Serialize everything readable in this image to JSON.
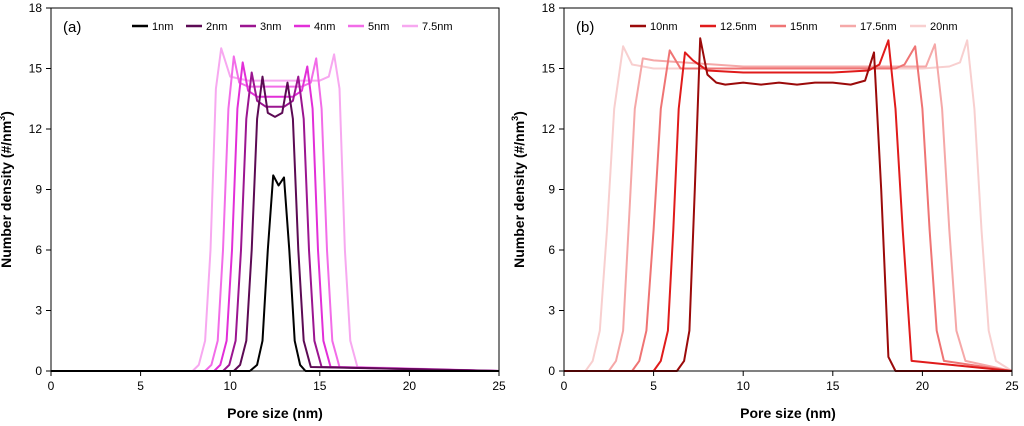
{
  "chart_data": [
    {
      "type": "line",
      "panel_label": "(a)",
      "xlabel": "Pore size (nm)",
      "ylabel_main": "Number density (#/nm",
      "ylabel_sup": "3",
      "ylabel_end": ")",
      "xlim": [
        0,
        25
      ],
      "ylim": [
        0,
        18
      ],
      "xticks": [
        0,
        5,
        10,
        15,
        20,
        25
      ],
      "yticks": [
        0,
        3,
        6,
        9,
        12,
        15,
        18
      ],
      "legend_position": "top",
      "series": [
        {
          "name": "7.5nm",
          "color": "#f7a8f0",
          "x": [
            0,
            7.9,
            8.25,
            8.6,
            8.9,
            9.2,
            9.5,
            10,
            11,
            12,
            13,
            14,
            15,
            15.5,
            15.8,
            16.1,
            16.4,
            16.7,
            17.1,
            25
          ],
          "y": [
            0,
            0,
            0.3,
            1.5,
            6,
            14,
            16,
            14.6,
            14.4,
            14.4,
            14.4,
            14.4,
            14.4,
            14.6,
            15.7,
            14,
            6,
            1.5,
            0.2,
            0
          ]
        },
        {
          "name": "5nm",
          "color": "#f26ce8",
          "x": [
            0,
            8.6,
            8.95,
            9.3,
            9.6,
            9.9,
            10.2,
            10.5,
            11,
            12,
            13,
            14,
            14.5,
            14.8,
            15.1,
            15.4,
            15.7,
            16.1,
            25
          ],
          "y": [
            0,
            0,
            0.3,
            1.5,
            6,
            13,
            15.6,
            14.3,
            14.1,
            14.1,
            14.1,
            14.1,
            14.3,
            15.5,
            13,
            6,
            1.5,
            0.2,
            0
          ]
        },
        {
          "name": "4nm",
          "color": "#e22fd8",
          "x": [
            0,
            9.1,
            9.45,
            9.8,
            10.1,
            10.4,
            10.7,
            11,
            11.5,
            12.5,
            13.5,
            14,
            14.3,
            14.6,
            14.9,
            15.2,
            15.6,
            25
          ],
          "y": [
            0,
            0,
            0.3,
            1.5,
            6,
            13,
            15.3,
            13.9,
            13.6,
            13.6,
            13.6,
            13.9,
            15.1,
            13,
            6,
            1.5,
            0.2,
            0
          ]
        },
        {
          "name": "3nm",
          "color": "#9b1590",
          "x": [
            0,
            9.6,
            9.95,
            10.3,
            10.6,
            10.9,
            11.2,
            11.5,
            12,
            12.5,
            13,
            13.5,
            13.8,
            14.1,
            14.4,
            14.7,
            15.1,
            25
          ],
          "y": [
            0,
            0,
            0.3,
            1.5,
            6,
            12.5,
            14.8,
            13.4,
            13.1,
            13.1,
            13.1,
            13.4,
            14.6,
            12.5,
            6,
            1.5,
            0.2,
            0
          ]
        },
        {
          "name": "2nm",
          "color": "#5c0a54",
          "x": [
            0,
            10.2,
            10.55,
            10.9,
            11.2,
            11.5,
            11.8,
            12.1,
            12.5,
            12.9,
            13.2,
            13.5,
            13.8,
            14.1,
            14.5,
            25
          ],
          "y": [
            0,
            0,
            0.3,
            1.5,
            6,
            12.5,
            14.6,
            12.8,
            12.6,
            12.8,
            14.3,
            12.5,
            6,
            1.5,
            0.2,
            0
          ]
        },
        {
          "name": "1nm",
          "color": "#000000",
          "x": [
            0,
            11.1,
            11.5,
            11.8,
            12.1,
            12.4,
            12.7,
            13,
            13.3,
            13.6,
            13.9,
            14.2,
            25
          ],
          "y": [
            0,
            0,
            0.3,
            1.5,
            6,
            9.7,
            9.2,
            9.6,
            6,
            1.5,
            0.3,
            0,
            0
          ]
        }
      ],
      "legend_order": [
        "1nm",
        "2nm",
        "3nm",
        "4nm",
        "5nm",
        "7.5nm"
      ]
    },
    {
      "type": "line",
      "panel_label": "(b)",
      "xlabel": "Pore size (nm)",
      "ylabel_main": "Number density (#/nm",
      "ylabel_sup": "3",
      "ylabel_end": ")",
      "xlim": [
        0,
        25
      ],
      "ylim": [
        0,
        18
      ],
      "xticks": [
        0,
        5,
        10,
        15,
        20,
        25
      ],
      "yticks": [
        0,
        3,
        6,
        9,
        12,
        15,
        18
      ],
      "legend_position": "top",
      "series": [
        {
          "name": "20nm",
          "color": "#f8cfcf",
          "x": [
            0,
            1.2,
            1.6,
            2,
            2.4,
            2.8,
            3.3,
            3.8,
            5,
            10,
            15,
            20,
            21.5,
            22.1,
            22.5,
            22.9,
            23.3,
            23.7,
            24.1,
            25
          ],
          "y": [
            0,
            0,
            0.5,
            2,
            7,
            13,
            16.1,
            15.2,
            15,
            15,
            15,
            15,
            15.1,
            15.3,
            16.4,
            13,
            7,
            2,
            0.5,
            0
          ]
        },
        {
          "name": "17.5nm",
          "color": "#f5a8a8",
          "x": [
            0,
            2.5,
            2.9,
            3.3,
            3.6,
            3.95,
            4.4,
            5,
            10,
            15,
            19,
            20.2,
            20.7,
            21.1,
            21.5,
            21.9,
            22.4,
            25
          ],
          "y": [
            0,
            0,
            0.5,
            2,
            7,
            13,
            15.5,
            15.4,
            15.1,
            15.1,
            15.1,
            15.1,
            16.2,
            13,
            7,
            2,
            0.5,
            0
          ]
        },
        {
          "name": "15nm",
          "color": "#ef7474",
          "x": [
            0,
            3.8,
            4.2,
            4.6,
            5,
            5.4,
            5.9,
            6.5,
            10,
            15,
            18.5,
            19,
            19.6,
            20,
            20.4,
            20.8,
            21.2,
            25
          ],
          "y": [
            0,
            0,
            0.5,
            2,
            7,
            13,
            15.9,
            15,
            15,
            15,
            15,
            15.2,
            16.1,
            13,
            7,
            2,
            0.5,
            0
          ]
        },
        {
          "name": "12.5nm",
          "color": "#e01b1b",
          "x": [
            0,
            5,
            5.4,
            5.8,
            6.1,
            6.4,
            6.75,
            7.2,
            8,
            10,
            15,
            17,
            17.6,
            18.1,
            18.5,
            18.9,
            19.4,
            25
          ],
          "y": [
            0,
            0,
            0.5,
            2,
            7,
            13,
            15.8,
            15.4,
            14.9,
            14.8,
            14.8,
            14.9,
            15.2,
            16.4,
            13,
            7,
            0.5,
            0
          ]
        },
        {
          "name": "10nm",
          "color": "#9b0a0a",
          "x": [
            0,
            6.3,
            6.7,
            7,
            7.3,
            7.6,
            8,
            8.5,
            9,
            10,
            11,
            12,
            13,
            14,
            15,
            16,
            16.8,
            17.3,
            17.7,
            18.1,
            18.5,
            25
          ],
          "y": [
            0,
            0,
            0.5,
            2,
            9,
            16.5,
            14.7,
            14.3,
            14.2,
            14.3,
            14.2,
            14.3,
            14.2,
            14.3,
            14.3,
            14.2,
            14.4,
            15.8,
            9,
            0.7,
            0,
            0
          ]
        }
      ],
      "legend_order": [
        "10nm",
        "12.5nm",
        "15nm",
        "17.5nm",
        "20nm"
      ]
    }
  ]
}
